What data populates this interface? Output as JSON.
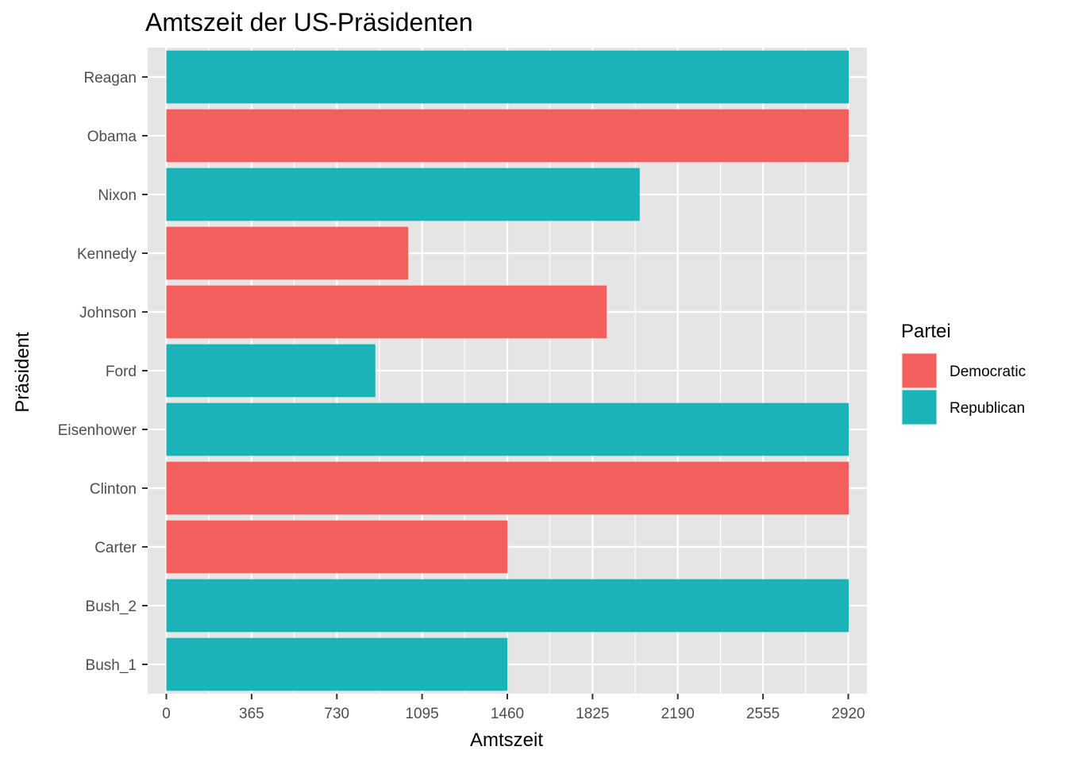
{
  "chart_data": {
    "type": "bar",
    "orientation": "horizontal",
    "title": "Amtszeit der US-Präsidenten",
    "xlabel": "Amtszeit",
    "ylabel": "Präsident",
    "xlim": [
      -80,
      3000
    ],
    "xticks": [
      0,
      365,
      730,
      1095,
      1460,
      1825,
      2190,
      2555,
      2920
    ],
    "xtick_labels": [
      "0",
      "365",
      "730",
      "1095",
      "1460",
      "1825",
      "2190",
      "2555",
      "2920"
    ],
    "categories": [
      "Bush_1",
      "Bush_2",
      "Carter",
      "Clinton",
      "Eisenhower",
      "Ford",
      "Johnson",
      "Kennedy",
      "Nixon",
      "Obama",
      "Reagan"
    ],
    "values": [
      1461,
      2922,
      1461,
      2922,
      2922,
      895,
      1886,
      1036,
      2027,
      2922,
      2922
    ],
    "party": [
      "Republican",
      "Republican",
      "Democratic",
      "Democratic",
      "Republican",
      "Republican",
      "Democratic",
      "Democratic",
      "Republican",
      "Democratic",
      "Republican"
    ],
    "legend": {
      "title": "Partei",
      "position": "right",
      "entries": [
        {
          "label": "Democratic",
          "color": "#F8766D"
        },
        {
          "label": "Republican",
          "color": "#00BFC4"
        }
      ]
    },
    "colors": {
      "Democratic": "#F35F5C",
      "Republican": "#1AB3B8"
    },
    "panel_background": "#E5E5E5",
    "grid": true
  }
}
